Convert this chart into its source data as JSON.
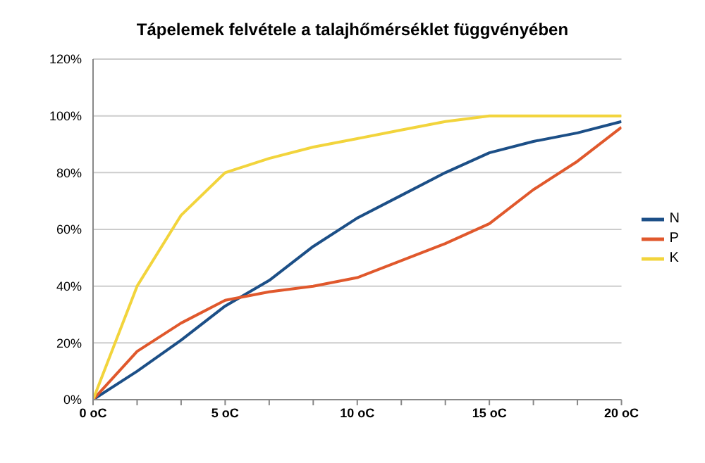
{
  "chart_data": {
    "type": "line",
    "title": "Tápelemek felvétele a talajhőmérséklet függvényében",
    "categories": [
      "0 oC",
      null,
      null,
      "5 oC",
      null,
      null,
      "10 oC",
      null,
      null,
      "15 oC",
      null,
      null,
      "20 oC"
    ],
    "series": [
      {
        "name": "N",
        "color": "#1c4f87",
        "values": [
          0,
          10,
          21,
          33,
          42,
          54,
          64,
          72,
          80,
          87,
          91,
          94,
          98
        ]
      },
      {
        "name": "P",
        "color": "#e0582c",
        "values": [
          0,
          17,
          27,
          35,
          38,
          40,
          43,
          49,
          55,
          62,
          74,
          84,
          96
        ]
      },
      {
        "name": "K",
        "color": "#f2d43c",
        "values": [
          0,
          40,
          65,
          80,
          85,
          89,
          92,
          95,
          98,
          100,
          100,
          100,
          100
        ]
      }
    ],
    "ylim": [
      0,
      120
    ],
    "yticks": [
      {
        "value": 0,
        "label": "0%"
      },
      {
        "value": 20,
        "label": "20%"
      },
      {
        "value": 40,
        "label": "40%"
      },
      {
        "value": 60,
        "label": "60%"
      },
      {
        "value": 80,
        "label": "80%"
      },
      {
        "value": 100,
        "label": "100%"
      },
      {
        "value": 120,
        "label": "120%"
      }
    ],
    "grid": "y",
    "legend": "right",
    "marker": "none"
  }
}
